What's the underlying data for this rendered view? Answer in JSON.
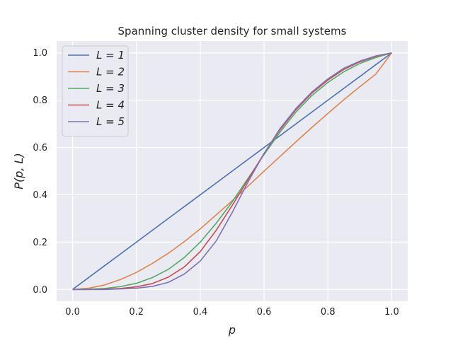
{
  "chart_data": {
    "type": "line",
    "title": "Spanning cluster density for small systems",
    "xlabel": "p",
    "ylabel": "P(p, L)",
    "xlim": [
      -0.05,
      1.05
    ],
    "ylim": [
      -0.05,
      1.05
    ],
    "x_ticks": [
      "0.0",
      "0.2",
      "0.4",
      "0.6",
      "0.8",
      "1.0"
    ],
    "y_ticks": [
      "0.0",
      "0.2",
      "0.4",
      "0.6",
      "0.8",
      "1.0"
    ],
    "grid": true,
    "legend_position": "top-left",
    "x": [
      0.0,
      0.05,
      0.1,
      0.15,
      0.2,
      0.25,
      0.3,
      0.35,
      0.4,
      0.45,
      0.5,
      0.55,
      0.6,
      0.65,
      0.7,
      0.75,
      0.8,
      0.85,
      0.9,
      0.95,
      1.0
    ],
    "series": [
      {
        "name": "L = 1",
        "color": "#4c72b0",
        "values": [
          0.0,
          0.05,
          0.1,
          0.15,
          0.2,
          0.25,
          0.3,
          0.35,
          0.4,
          0.45,
          0.5,
          0.55,
          0.6,
          0.65,
          0.7,
          0.75,
          0.8,
          0.85,
          0.9,
          0.95,
          1.0
        ]
      },
      {
        "name": "L = 2",
        "color": "#dd8452",
        "values": [
          0.0,
          0.005,
          0.019,
          0.042,
          0.072,
          0.11,
          0.153,
          0.202,
          0.256,
          0.315,
          0.375,
          0.437,
          0.5,
          0.562,
          0.624,
          0.685,
          0.744,
          0.802,
          0.857,
          0.91,
          1.0
        ]
      },
      {
        "name": "L = 3",
        "color": "#55a868",
        "values": [
          0.0,
          0.001,
          0.004,
          0.012,
          0.026,
          0.05,
          0.085,
          0.135,
          0.2,
          0.28,
          0.37,
          0.47,
          0.57,
          0.665,
          0.75,
          0.82,
          0.875,
          0.92,
          0.955,
          0.98,
          1.0
        ]
      },
      {
        "name": "L = 4",
        "color": "#c44e52",
        "values": [
          0.0,
          0.0,
          0.001,
          0.004,
          0.011,
          0.025,
          0.052,
          0.095,
          0.16,
          0.25,
          0.355,
          0.465,
          0.575,
          0.675,
          0.76,
          0.83,
          0.885,
          0.93,
          0.962,
          0.985,
          1.0
        ]
      },
      {
        "name": "L = 5",
        "color": "#8172b3",
        "values": [
          0.0,
          0.0,
          0.0,
          0.002,
          0.005,
          0.013,
          0.03,
          0.065,
          0.12,
          0.205,
          0.325,
          0.455,
          0.575,
          0.68,
          0.765,
          0.835,
          0.89,
          0.935,
          0.965,
          0.987,
          1.0
        ]
      }
    ]
  }
}
